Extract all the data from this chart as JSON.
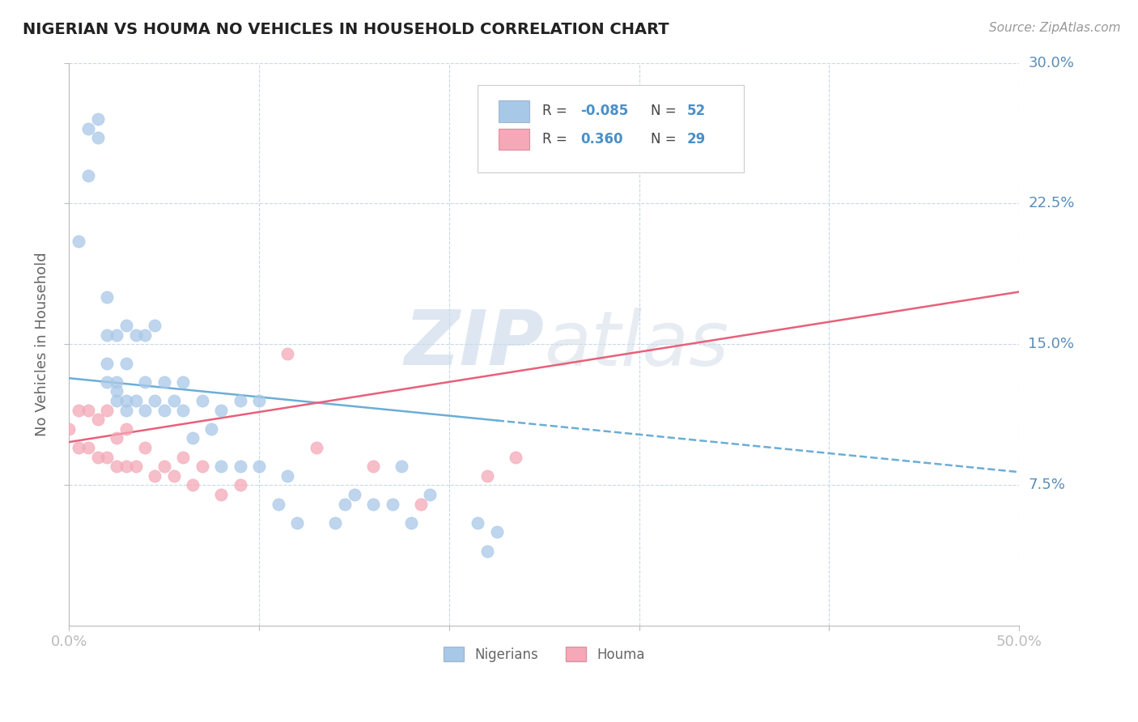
{
  "title": "NIGERIAN VS HOUMA NO VEHICLES IN HOUSEHOLD CORRELATION CHART",
  "source": "Source: ZipAtlas.com",
  "ylabel": "No Vehicles in Household",
  "xlim": [
    0.0,
    0.5
  ],
  "ylim": [
    0.0,
    0.3
  ],
  "xticks": [
    0.0,
    0.1,
    0.2,
    0.3,
    0.4,
    0.5
  ],
  "yticks": [
    0.075,
    0.15,
    0.225,
    0.3
  ],
  "nigerian_color": "#a8c8e8",
  "houma_color": "#f4a8b8",
  "nigerian_line_color": "#6baed6",
  "houma_line_color": "#e8607a",
  "background_color": "#ffffff",
  "grid_color": "#c8d8e8",
  "watermark_color": "#d8e4f0",
  "nigerian_x": [
    0.005,
    0.01,
    0.01,
    0.015,
    0.015,
    0.02,
    0.02,
    0.02,
    0.02,
    0.025,
    0.025,
    0.025,
    0.025,
    0.03,
    0.03,
    0.03,
    0.03,
    0.035,
    0.035,
    0.04,
    0.04,
    0.04,
    0.045,
    0.045,
    0.05,
    0.05,
    0.055,
    0.06,
    0.06,
    0.065,
    0.07,
    0.075,
    0.08,
    0.08,
    0.09,
    0.09,
    0.1,
    0.1,
    0.11,
    0.115,
    0.12,
    0.14,
    0.145,
    0.15,
    0.16,
    0.17,
    0.175,
    0.18,
    0.19,
    0.215,
    0.22,
    0.225
  ],
  "nigerian_y": [
    0.205,
    0.24,
    0.265,
    0.26,
    0.27,
    0.13,
    0.14,
    0.155,
    0.175,
    0.12,
    0.125,
    0.13,
    0.155,
    0.115,
    0.12,
    0.14,
    0.16,
    0.12,
    0.155,
    0.115,
    0.13,
    0.155,
    0.12,
    0.16,
    0.115,
    0.13,
    0.12,
    0.115,
    0.13,
    0.1,
    0.12,
    0.105,
    0.085,
    0.115,
    0.085,
    0.12,
    0.085,
    0.12,
    0.065,
    0.08,
    0.055,
    0.055,
    0.065,
    0.07,
    0.065,
    0.065,
    0.085,
    0.055,
    0.07,
    0.055,
    0.04,
    0.05
  ],
  "houma_x": [
    0.0,
    0.005,
    0.005,
    0.01,
    0.01,
    0.015,
    0.015,
    0.02,
    0.02,
    0.025,
    0.025,
    0.03,
    0.03,
    0.035,
    0.04,
    0.045,
    0.05,
    0.055,
    0.06,
    0.065,
    0.07,
    0.08,
    0.09,
    0.115,
    0.13,
    0.16,
    0.185,
    0.22,
    0.235
  ],
  "houma_y": [
    0.105,
    0.095,
    0.115,
    0.095,
    0.115,
    0.09,
    0.11,
    0.09,
    0.115,
    0.085,
    0.1,
    0.085,
    0.105,
    0.085,
    0.095,
    0.08,
    0.085,
    0.08,
    0.09,
    0.075,
    0.085,
    0.07,
    0.075,
    0.145,
    0.095,
    0.085,
    0.065,
    0.08,
    0.09
  ],
  "nig_line_x0": 0.0,
  "nig_line_x_solid_end": 0.225,
  "nig_line_x1": 0.5,
  "nig_line_y0": 0.132,
  "nig_line_y1": 0.082,
  "houma_line_x0": 0.0,
  "houma_line_x1": 0.5,
  "houma_line_y0": 0.098,
  "houma_line_y1": 0.178
}
